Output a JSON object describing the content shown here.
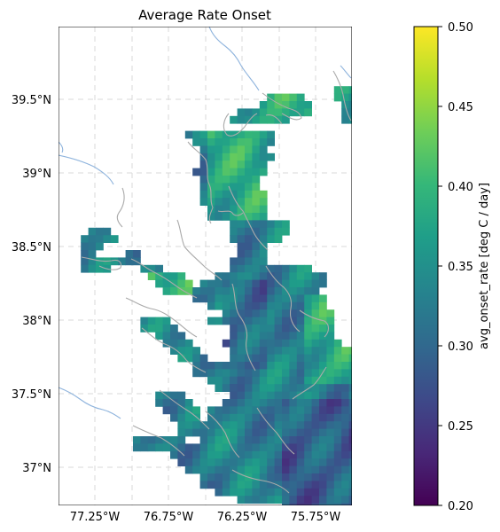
{
  "map": {
    "title": "Average Rate Onset",
    "x_ticks": [
      "77.25°W",
      "76.75°W",
      "76.25°W",
      "75.75°W"
    ],
    "y_ticks": [
      "39.5°N",
      "39°N",
      "38.5°N",
      "38°N",
      "37.5°N",
      "37°N"
    ],
    "colormap": "viridis",
    "colors": {
      "viridis_stops": [
        "#440154",
        "#482878",
        "#3e4989",
        "#31688e",
        "#26828e",
        "#1f9e89",
        "#35b779",
        "#6ece58",
        "#b5de2b",
        "#fde725"
      ],
      "coastline": "#aaaaaa",
      "rivers": "#8fb4dd",
      "gridlines": "#d9d9d9"
    }
  },
  "colorbar": {
    "label": "avg_onset_rate [deg C / day]",
    "ticks": [
      "0.20",
      "0.25",
      "0.30",
      "0.35",
      "0.40",
      "0.45",
      "0.50"
    ],
    "vmin": 0.2,
    "vmax": 0.5
  }
}
